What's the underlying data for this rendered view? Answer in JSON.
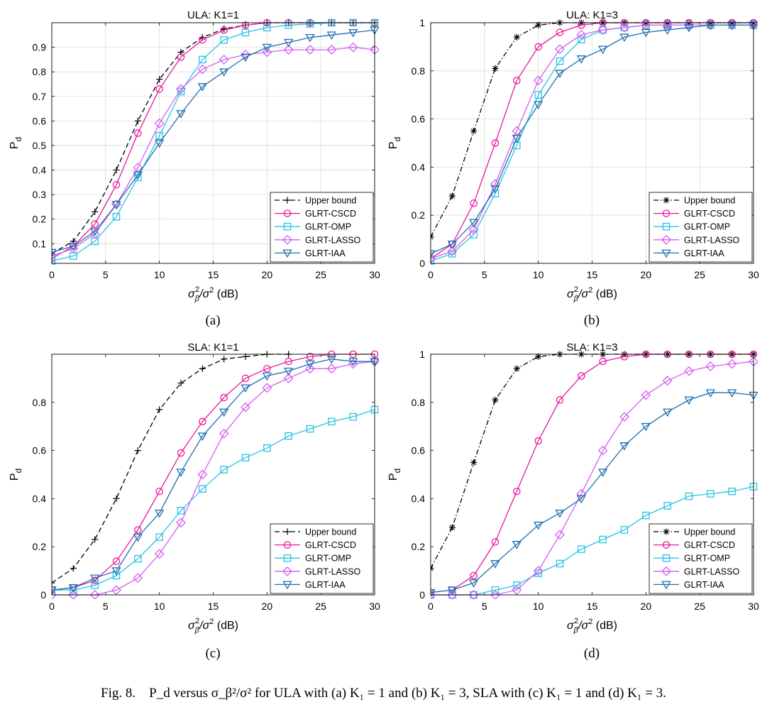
{
  "caption": {
    "label": "Fig. 8.",
    "text": "P_d versus σ_β²/σ² for ULA with (a) K₁ = 1 and (b) K₁ = 3, SLA with (c) K₁ = 1 and (d) K₁ = 3."
  },
  "series_styles": {
    "Upper bound": {
      "color": "#000000",
      "marker": "plus"
    },
    "GLRT-CSCD": {
      "color": "#e6199b",
      "marker": "circle"
    },
    "GLRT-OMP": {
      "color": "#29c3e3",
      "marker": "square"
    },
    "GLRT-LASSO": {
      "color": "#d35ef0",
      "marker": "diamond"
    },
    "GLRT-IAA": {
      "color": "#1f6fad",
      "marker": "triangle-down"
    }
  },
  "chart_data": [
    {
      "panel": "(a)",
      "type": "line",
      "title": "ULA: K1=1",
      "xlabel": "σ_β²/σ² (dB)",
      "ylabel": "P_d",
      "xlim": [
        0,
        30
      ],
      "ylim": [
        0.02,
        1.0
      ],
      "xticks": [
        0,
        5,
        10,
        15,
        20,
        25,
        30
      ],
      "yticks": [
        0.1,
        0.2,
        0.3,
        0.4,
        0.5,
        0.6,
        0.7,
        0.8,
        0.9
      ],
      "ytick_labels": [
        "0.1",
        "0.2",
        "0.3",
        "0.4",
        "0.5",
        "0.6",
        "0.7",
        "0.8",
        "0.9"
      ],
      "grid": true,
      "legend_position": "bottom-right",
      "x": [
        0,
        2,
        4,
        6,
        8,
        10,
        12,
        14,
        16,
        18,
        20,
        22,
        24,
        26,
        28,
        30
      ],
      "series": [
        {
          "name": "Upper bound",
          "legend": "Upper bound",
          "dash": "dashed",
          "marker": "plus",
          "values": [
            0.06,
            0.11,
            0.23,
            0.4,
            0.6,
            0.77,
            0.88,
            0.94,
            0.975,
            0.99,
            1.0,
            1.0,
            1.0,
            1.0,
            1.0,
            1.0
          ]
        },
        {
          "name": "GLRT-CSCD",
          "legend": "GLRT-CSCD",
          "dash": "solid",
          "marker": "circle",
          "values": [
            0.04,
            0.09,
            0.18,
            0.34,
            0.55,
            0.73,
            0.86,
            0.93,
            0.97,
            0.99,
            1.0,
            1.0,
            1.0,
            1.0,
            1.0,
            1.0
          ]
        },
        {
          "name": "GLRT-OMP",
          "legend": "GLRT-OMP",
          "dash": "solid",
          "marker": "square",
          "values": [
            0.03,
            0.05,
            0.11,
            0.21,
            0.37,
            0.54,
            0.72,
            0.85,
            0.93,
            0.96,
            0.98,
            0.99,
            0.995,
            1.0,
            1.0,
            1.0
          ]
        },
        {
          "name": "GLRT-LASSO",
          "legend": "GLRT-LASSO",
          "dash": "solid",
          "marker": "diamond",
          "values": [
            0.05,
            0.08,
            0.14,
            0.26,
            0.41,
            0.59,
            0.73,
            0.81,
            0.85,
            0.87,
            0.88,
            0.89,
            0.89,
            0.89,
            0.9,
            0.89
          ]
        },
        {
          "name": "GLRT-IAA",
          "legend": "GLRT-IAA",
          "dash": "solid",
          "marker": "triangle-down",
          "values": [
            0.065,
            0.09,
            0.15,
            0.26,
            0.38,
            0.51,
            0.63,
            0.74,
            0.8,
            0.86,
            0.9,
            0.92,
            0.94,
            0.95,
            0.96,
            0.97
          ]
        }
      ]
    },
    {
      "panel": "(b)",
      "type": "line",
      "title": "ULA: K1=3",
      "xlabel": "σ_β²/σ² (dB)",
      "ylabel": "P_d",
      "xlim": [
        0,
        30
      ],
      "ylim": [
        0,
        1.0
      ],
      "xticks": [
        0,
        5,
        10,
        15,
        20,
        25,
        30
      ],
      "yticks": [
        0,
        0.2,
        0.4,
        0.6,
        0.8,
        1.0
      ],
      "ytick_labels": [
        "0",
        "0.2",
        "0.4",
        "0.6",
        "0.8",
        "1"
      ],
      "grid": true,
      "legend_position": "bottom-right",
      "x": [
        0,
        2,
        4,
        6,
        8,
        10,
        12,
        14,
        16,
        18,
        20,
        22,
        24,
        26,
        28,
        30
      ],
      "series": [
        {
          "name": "Upper bound",
          "legend": "Upper bound",
          "dash": "dashdot",
          "marker": "asterisk",
          "values": [
            0.11,
            0.28,
            0.55,
            0.81,
            0.94,
            0.99,
            1.0,
            1.0,
            1.0,
            1.0,
            1.0,
            1.0,
            1.0,
            1.0,
            1.0,
            1.0
          ]
        },
        {
          "name": "GLRT-CSCD",
          "legend": "GLRT-CSCD",
          "dash": "solid",
          "marker": "circle",
          "values": [
            0.02,
            0.08,
            0.25,
            0.5,
            0.76,
            0.9,
            0.96,
            0.99,
            1.0,
            1.0,
            1.0,
            1.0,
            1.0,
            1.0,
            1.0,
            1.0
          ]
        },
        {
          "name": "GLRT-OMP",
          "legend": "GLRT-OMP",
          "dash": "solid",
          "marker": "square",
          "values": [
            0.01,
            0.04,
            0.12,
            0.29,
            0.49,
            0.7,
            0.84,
            0.93,
            0.97,
            0.98,
            0.99,
            0.99,
            0.99,
            0.99,
            0.99,
            0.99
          ]
        },
        {
          "name": "GLRT-LASSO",
          "legend": "GLRT-LASSO",
          "dash": "solid",
          "marker": "diamond",
          "values": [
            0.02,
            0.05,
            0.14,
            0.33,
            0.55,
            0.76,
            0.89,
            0.95,
            0.97,
            0.98,
            0.99,
            0.99,
            0.99,
            0.99,
            0.99,
            0.99
          ]
        },
        {
          "name": "GLRT-IAA",
          "legend": "GLRT-IAA",
          "dash": "solid",
          "marker": "triangle-down",
          "values": [
            0.04,
            0.08,
            0.17,
            0.31,
            0.52,
            0.66,
            0.79,
            0.85,
            0.89,
            0.94,
            0.96,
            0.97,
            0.98,
            0.99,
            0.99,
            0.99
          ]
        }
      ]
    },
    {
      "panel": "(c)",
      "type": "line",
      "title": "SLA: K1=1",
      "xlabel": "σ_β²/σ² (dB)",
      "ylabel": "P_d",
      "xlim": [
        0,
        30
      ],
      "ylim": [
        0,
        1.0
      ],
      "xticks": [
        0,
        5,
        10,
        15,
        20,
        25,
        30
      ],
      "yticks": [
        0,
        0.2,
        0.4,
        0.6,
        0.8
      ],
      "ytick_labels": [
        "0",
        "0.2",
        "0.4",
        "0.6",
        "0.8"
      ],
      "grid": false,
      "legend_position": "bottom-right",
      "x": [
        0,
        2,
        4,
        6,
        8,
        10,
        12,
        14,
        16,
        18,
        20,
        22,
        24,
        26,
        28,
        30
      ],
      "series": [
        {
          "name": "Upper bound",
          "legend": "Upper bound",
          "dash": "dashed",
          "marker": "plus",
          "values": [
            0.05,
            0.11,
            0.23,
            0.4,
            0.6,
            0.77,
            0.88,
            0.94,
            0.98,
            0.99,
            1.0,
            1.0,
            null,
            null,
            null,
            null
          ]
        },
        {
          "name": "GLRT-CSCD",
          "legend": "GLRT-CSCD",
          "dash": "solid",
          "marker": "circle",
          "values": [
            0.02,
            0.03,
            0.06,
            0.14,
            0.27,
            0.43,
            0.59,
            0.72,
            0.82,
            0.9,
            0.94,
            0.97,
            0.99,
            1.0,
            1.0,
            1.0
          ]
        },
        {
          "name": "GLRT-OMP",
          "legend": "GLRT-OMP",
          "dash": "solid",
          "marker": "square",
          "values": [
            0.02,
            0.02,
            0.04,
            0.08,
            0.15,
            0.24,
            0.35,
            0.44,
            0.52,
            0.57,
            0.61,
            0.66,
            0.69,
            0.72,
            0.74,
            0.77
          ]
        },
        {
          "name": "GLRT-LASSO",
          "legend": "GLRT-LASSO",
          "dash": "solid",
          "marker": "diamond",
          "values": [
            0.0,
            0.0,
            0.0,
            0.02,
            0.07,
            0.17,
            0.3,
            0.5,
            0.67,
            0.78,
            0.86,
            0.9,
            0.94,
            0.94,
            0.96,
            0.97
          ]
        },
        {
          "name": "GLRT-IAA",
          "legend": "GLRT-IAA",
          "dash": "solid",
          "marker": "triangle-down",
          "values": [
            0.02,
            0.03,
            0.07,
            0.1,
            0.24,
            0.34,
            0.51,
            0.66,
            0.76,
            0.86,
            0.91,
            0.93,
            0.96,
            0.98,
            0.97,
            0.97
          ]
        }
      ]
    },
    {
      "panel": "(d)",
      "type": "line",
      "title": "SLA: K1=3",
      "xlabel": "σ_β²/σ² (dB)",
      "ylabel": "P_d",
      "xlim": [
        0,
        30
      ],
      "ylim": [
        0,
        1.0
      ],
      "xticks": [
        0,
        5,
        10,
        15,
        20,
        25,
        30
      ],
      "yticks": [
        0,
        0.2,
        0.4,
        0.6,
        0.8,
        1.0
      ],
      "ytick_labels": [
        "0",
        "0.2",
        "0.4",
        "0.6",
        "0.8",
        "1"
      ],
      "grid": false,
      "legend_position": "bottom-right",
      "x": [
        0,
        2,
        4,
        6,
        8,
        10,
        12,
        14,
        16,
        18,
        20,
        22,
        24,
        26,
        28,
        30
      ],
      "series": [
        {
          "name": "Upper bound",
          "legend": "Upper bound",
          "dash": "dashdot",
          "marker": "asterisk",
          "values": [
            0.11,
            0.28,
            0.55,
            0.81,
            0.94,
            0.99,
            1.0,
            1.0,
            1.0,
            1.0,
            1.0,
            1.0,
            1.0,
            1.0,
            1.0,
            1.0
          ]
        },
        {
          "name": "GLRT-CSCD",
          "legend": "GLRT-CSCD",
          "dash": "solid",
          "marker": "circle",
          "values": [
            0.01,
            0.02,
            0.08,
            0.22,
            0.43,
            0.64,
            0.81,
            0.91,
            0.97,
            0.99,
            1.0,
            1.0,
            1.0,
            1.0,
            1.0,
            1.0
          ]
        },
        {
          "name": "GLRT-OMP",
          "legend": "GLRT-OMP",
          "dash": "solid",
          "marker": "square",
          "values": [
            0.0,
            0.0,
            0.0,
            0.02,
            0.04,
            0.09,
            0.13,
            0.19,
            0.23,
            0.27,
            0.33,
            0.37,
            0.41,
            0.42,
            0.43,
            0.45
          ]
        },
        {
          "name": "GLRT-LASSO",
          "legend": "GLRT-LASSO",
          "dash": "solid",
          "marker": "diamond",
          "values": [
            0.0,
            0.0,
            0.0,
            0.0,
            0.02,
            0.1,
            0.25,
            0.42,
            0.6,
            0.74,
            0.83,
            0.89,
            0.93,
            0.95,
            0.96,
            0.97
          ]
        },
        {
          "name": "GLRT-IAA",
          "legend": "GLRT-IAA",
          "dash": "solid",
          "marker": "triangle-down",
          "values": [
            0.01,
            0.02,
            0.05,
            0.13,
            0.21,
            0.29,
            0.34,
            0.4,
            0.51,
            0.62,
            0.7,
            0.76,
            0.81,
            0.84,
            0.84,
            0.83
          ]
        }
      ]
    }
  ]
}
